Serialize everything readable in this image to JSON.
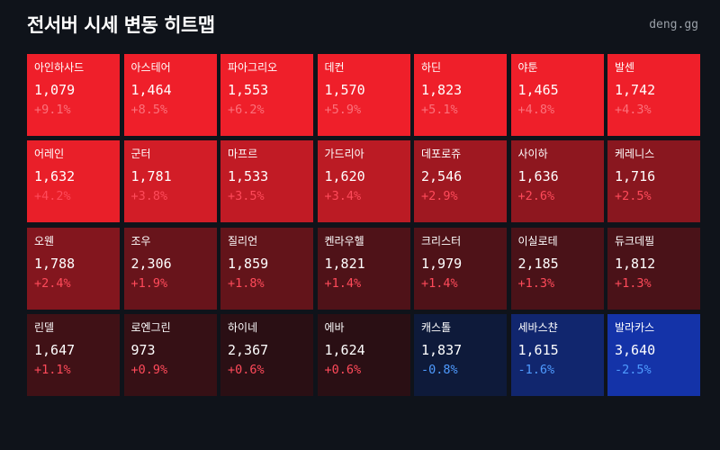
{
  "header": {
    "title": "전서버 시세 변동 히트맵",
    "source": "deng.gg"
  },
  "colors": {
    "background": "#0f131a",
    "up_strong": "#ef1f2a",
    "up_weak": "#2a0f14",
    "down_weak": "#0e1a3a",
    "down_strong": "#1433a8",
    "up_text": "#ff4a5a",
    "down_text": "#4f9bff"
  },
  "chart_data": {
    "type": "heatmap",
    "title": "전서버 시세 변동 히트맵",
    "cells": [
      {
        "name": "아인하사드",
        "price": "1,079",
        "change": "+9.1%",
        "value": 9.1
      },
      {
        "name": "아스테어",
        "price": "1,464",
        "change": "+8.5%",
        "value": 8.5
      },
      {
        "name": "파아그리오",
        "price": "1,553",
        "change": "+6.2%",
        "value": 6.2
      },
      {
        "name": "데컨",
        "price": "1,570",
        "change": "+5.9%",
        "value": 5.9
      },
      {
        "name": "하딘",
        "price": "1,823",
        "change": "+5.1%",
        "value": 5.1
      },
      {
        "name": "야툰",
        "price": "1,465",
        "change": "+4.8%",
        "value": 4.8
      },
      {
        "name": "발센",
        "price": "1,742",
        "change": "+4.3%",
        "value": 4.3
      },
      {
        "name": "어레인",
        "price": "1,632",
        "change": "+4.2%",
        "value": 4.2
      },
      {
        "name": "군터",
        "price": "1,781",
        "change": "+3.8%",
        "value": 3.8
      },
      {
        "name": "마프르",
        "price": "1,533",
        "change": "+3.5%",
        "value": 3.5
      },
      {
        "name": "가드리아",
        "price": "1,620",
        "change": "+3.4%",
        "value": 3.4
      },
      {
        "name": "데포로쥬",
        "price": "2,546",
        "change": "+2.9%",
        "value": 2.9
      },
      {
        "name": "사이하",
        "price": "1,636",
        "change": "+2.6%",
        "value": 2.6
      },
      {
        "name": "케레니스",
        "price": "1,716",
        "change": "+2.5%",
        "value": 2.5
      },
      {
        "name": "오웬",
        "price": "1,788",
        "change": "+2.4%",
        "value": 2.4
      },
      {
        "name": "조우",
        "price": "2,306",
        "change": "+1.9%",
        "value": 1.9
      },
      {
        "name": "질리언",
        "price": "1,859",
        "change": "+1.8%",
        "value": 1.8
      },
      {
        "name": "켄라우헬",
        "price": "1,821",
        "change": "+1.4%",
        "value": 1.4
      },
      {
        "name": "크리스터",
        "price": "1,979",
        "change": "+1.4%",
        "value": 1.4
      },
      {
        "name": "이실로테",
        "price": "2,185",
        "change": "+1.3%",
        "value": 1.3
      },
      {
        "name": "듀크데필",
        "price": "1,812",
        "change": "+1.3%",
        "value": 1.3
      },
      {
        "name": "린델",
        "price": "1,647",
        "change": "+1.1%",
        "value": 1.1
      },
      {
        "name": "로엔그린",
        "price": "973",
        "change": "+0.9%",
        "value": 0.9
      },
      {
        "name": "하이네",
        "price": "2,367",
        "change": "+0.6%",
        "value": 0.6
      },
      {
        "name": "에바",
        "price": "1,624",
        "change": "+0.6%",
        "value": 0.6
      },
      {
        "name": "캐스톨",
        "price": "1,837",
        "change": "-0.8%",
        "value": -0.8
      },
      {
        "name": "세바스챤",
        "price": "1,615",
        "change": "-1.6%",
        "value": -1.6
      },
      {
        "name": "발라카스",
        "price": "3,640",
        "change": "-2.5%",
        "value": -2.5
      }
    ]
  }
}
